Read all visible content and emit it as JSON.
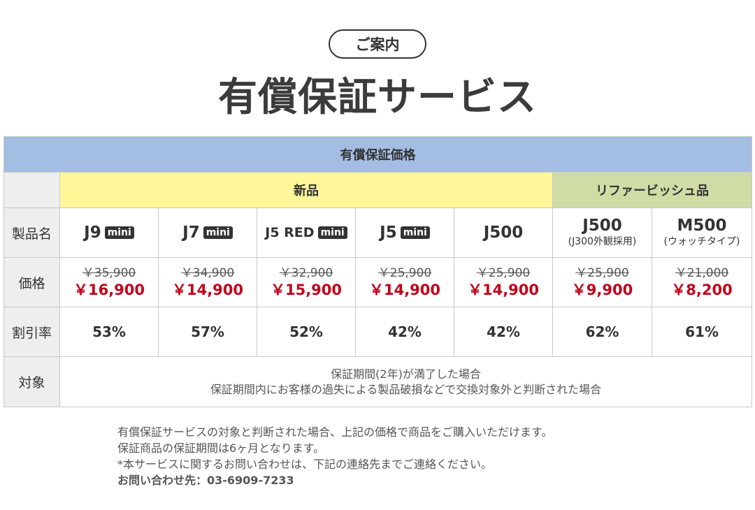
{
  "header": {
    "pill_label": "ご案内",
    "title": "有償保証サービス"
  },
  "table": {
    "head": "有償保証価格",
    "categories": {
      "new": "新品",
      "refurbished": "リファービッシュ品"
    },
    "row_labels": {
      "product": "製品名",
      "price": "価格",
      "discount": "割引率",
      "target": "対象"
    },
    "mini_badge": "mini",
    "products": [
      {
        "name": "J9",
        "sub": "",
        "mini": true,
        "old_price": "￥35,900",
        "new_price": "￥16,900",
        "discount": "53%"
      },
      {
        "name": "J7",
        "sub": "",
        "mini": true,
        "old_price": "￥34,900",
        "new_price": "￥14,900",
        "discount": "57%"
      },
      {
        "name": "J5 RED",
        "sub": "",
        "mini": true,
        "old_price": "￥32,900",
        "new_price": "￥15,900",
        "discount": "52%"
      },
      {
        "name": "J5",
        "sub": "",
        "mini": true,
        "old_price": "￥25,900",
        "new_price": "￥14,900",
        "discount": "42%"
      },
      {
        "name": "J500",
        "sub": "",
        "mini": false,
        "old_price": "￥25,900",
        "new_price": "￥14,900",
        "discount": "42%"
      },
      {
        "name": "J500",
        "sub": "(J300外観採用)",
        "mini": false,
        "old_price": "￥25,900",
        "new_price": "￥9,900",
        "discount": "62%"
      },
      {
        "name": "M500",
        "sub": "(ウォッチタイプ)",
        "mini": false,
        "old_price": "￥21,000",
        "new_price": "￥8,200",
        "discount": "61%"
      }
    ],
    "target_lines": [
      "保証期間(2年)が満了した場合",
      "保証期間内にお客様の過失による製品破損などで交換対象外と判断された場合"
    ]
  },
  "notes": {
    "line1": "有償保証サービスの対象と判断された場合、上記の価格で商品をご購入いただけます。",
    "line2": "保証商品の保証期間は6ヶ月となります。",
    "line3": "*本サービスに関するお問い合わせは、下記の連絡先までご連絡ください。",
    "contact": "お問い合わせ先：03-6909-7233"
  },
  "colors": {
    "header_blue": "#a4bde3",
    "new_yellow": "#fff799",
    "refurb_green": "#cfdca6",
    "sale_red": "#c4001b"
  }
}
